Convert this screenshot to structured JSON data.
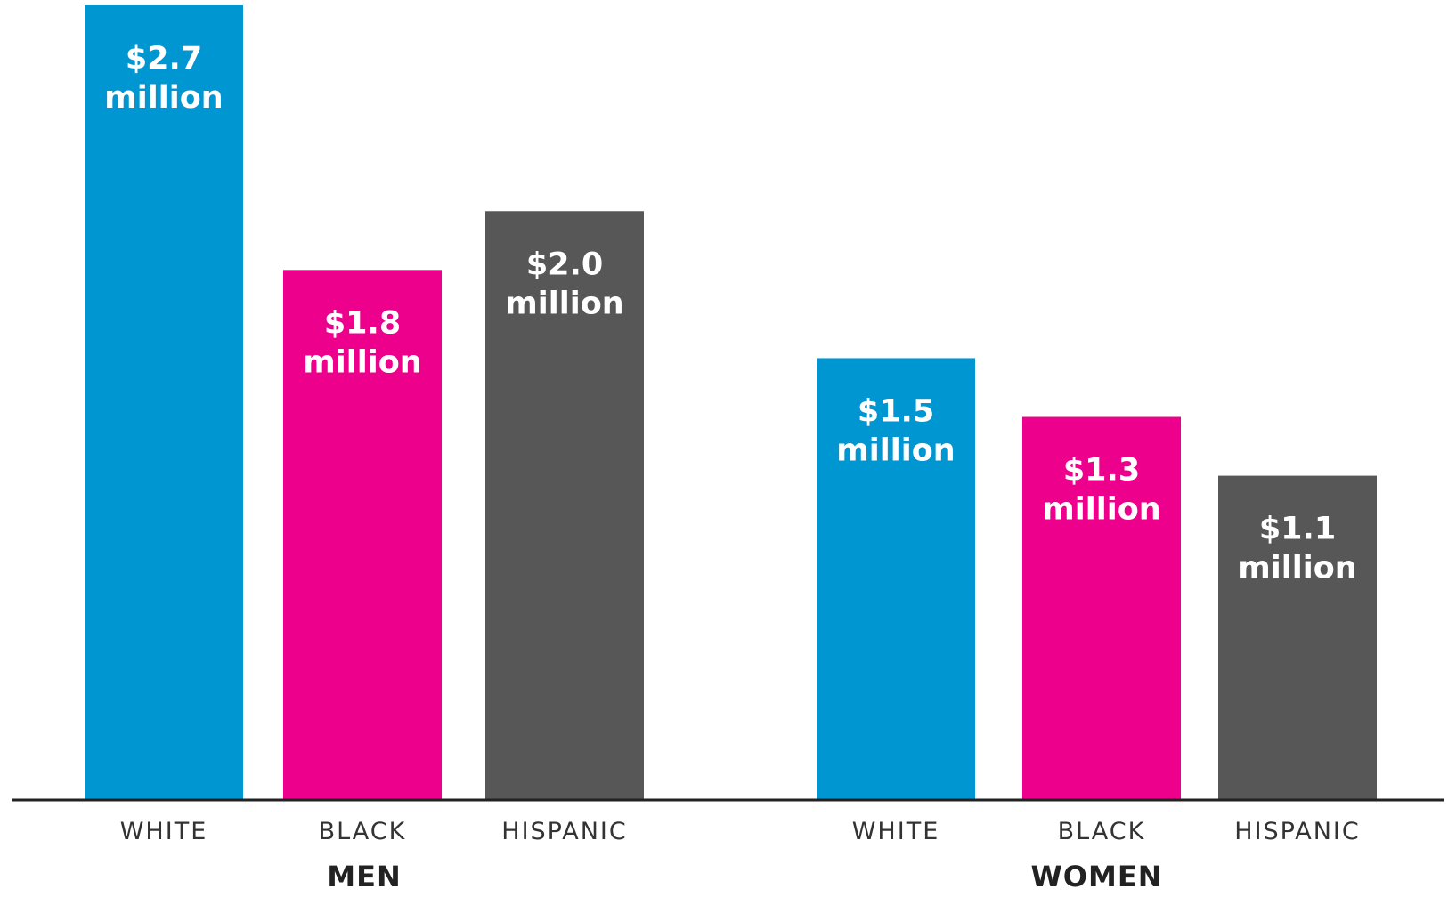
{
  "chart_data": {
    "type": "bar",
    "title": "",
    "xlabel": "",
    "ylabel": "",
    "ylim": [
      0,
      2.7
    ],
    "grid": false,
    "legend": "none",
    "groups": [
      {
        "name": "MEN",
        "bars": [
          {
            "category": "WHITE",
            "value": 2.7,
            "value_label": "$2.7",
            "unit_label": "million",
            "color": "#0096d2"
          },
          {
            "category": "BLACK",
            "value": 1.8,
            "value_label": "$1.8",
            "unit_label": "million",
            "color": "#ec008c"
          },
          {
            "category": "HISPANIC",
            "value": 2.0,
            "value_label": "$2.0",
            "unit_label": "million",
            "color": "#575757"
          }
        ]
      },
      {
        "name": "WOMEN",
        "bars": [
          {
            "category": "WHITE",
            "value": 1.5,
            "value_label": "$1.5",
            "unit_label": "million",
            "color": "#0096d2"
          },
          {
            "category": "BLACK",
            "value": 1.3,
            "value_label": "$1.3",
            "unit_label": "million",
            "color": "#ec008c"
          },
          {
            "category": "HISPANIC",
            "value": 1.1,
            "value_label": "$1.1",
            "unit_label": "million",
            "color": "#575757"
          }
        ]
      }
    ],
    "axis_color": "#222222"
  }
}
